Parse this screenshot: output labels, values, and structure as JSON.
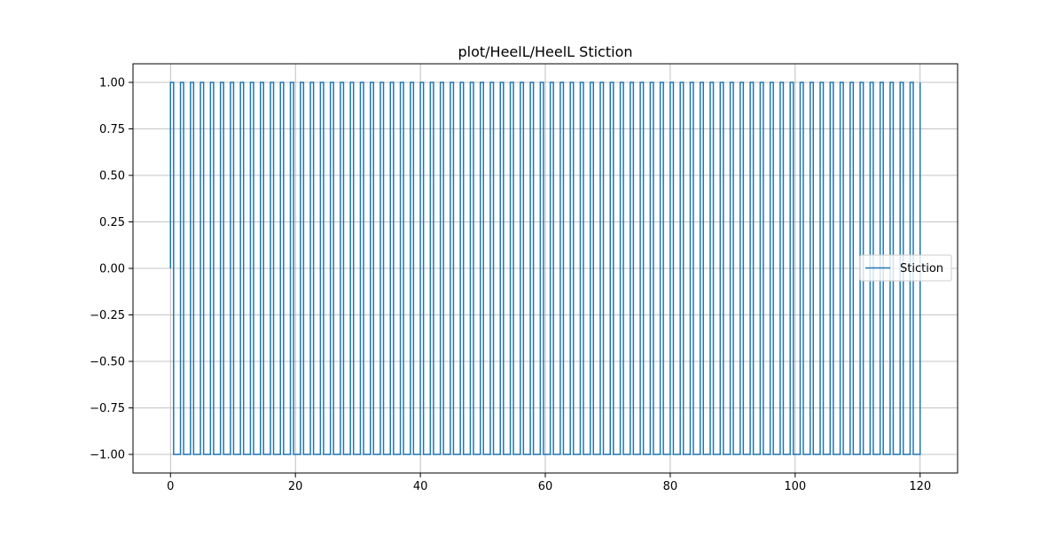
{
  "chart_data": {
    "type": "line",
    "title": "plot/HeelL/HeelL Stiction",
    "xlabel": "",
    "ylabel": "",
    "xlim": [
      -6,
      126
    ],
    "ylim": [
      -1.1,
      1.1
    ],
    "x_ticks": [
      0,
      20,
      40,
      60,
      80,
      100,
      120
    ],
    "x_tick_labels": [
      "0",
      "20",
      "40",
      "60",
      "80",
      "100",
      "120"
    ],
    "y_ticks": [
      -1.0,
      -0.75,
      -0.5,
      -0.25,
      0.0,
      0.25,
      0.5,
      0.75,
      1.0
    ],
    "y_tick_labels": [
      "−1.00",
      "−0.75",
      "−0.50",
      "−0.25",
      "0.00",
      "0.25",
      "0.50",
      "0.75",
      "1.00"
    ],
    "grid": true,
    "legend_position": "center-right",
    "series": [
      {
        "name": "Stiction",
        "color": "#1f77b4",
        "signal": "square wave",
        "x_start": 0,
        "x_end": 120,
        "initial_value": 0,
        "high": 1,
        "low": -1,
        "period": 1.6,
        "high_width": 0.5
      }
    ]
  }
}
